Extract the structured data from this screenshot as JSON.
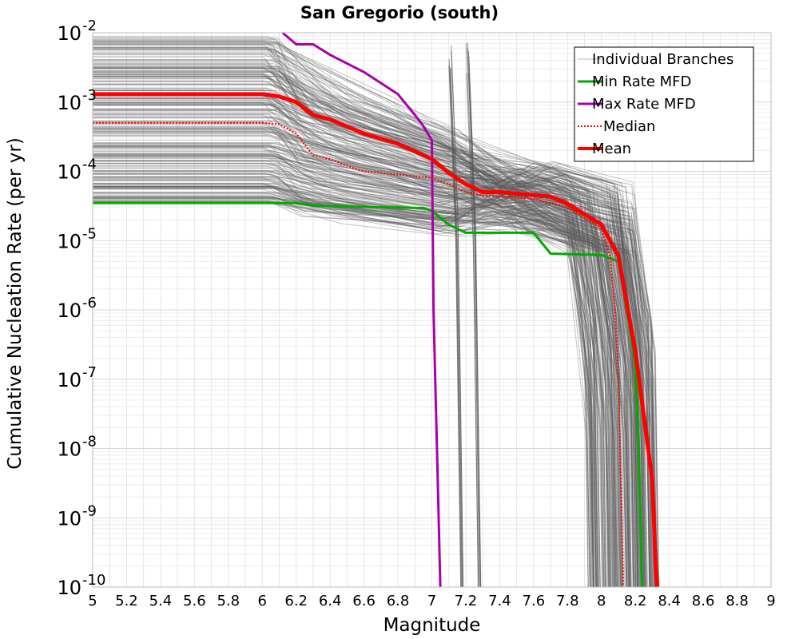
{
  "chart_data": {
    "type": "line",
    "title": "San Gregorio (south)",
    "xlabel": "Magnitude",
    "ylabel": "Cumulative Nucleation Rate (per yr)",
    "xlim": [
      5,
      9
    ],
    "ylim": [
      1e-10,
      0.01
    ],
    "y_scale": "log",
    "grid": true,
    "legend_position": "top-right",
    "x_ticks": [
      "5",
      "5.2",
      "5.4",
      "5.6",
      "5.8",
      "6",
      "6.2",
      "6.4",
      "6.6",
      "6.8",
      "7",
      "7.2",
      "7.4",
      "7.6",
      "7.8",
      "8",
      "8.2",
      "8.4",
      "8.6",
      "8.8",
      "9"
    ],
    "y_ticks": [
      {
        "base": "10",
        "exp": "-2",
        "value": 0.01
      },
      {
        "base": "10",
        "exp": "-3",
        "value": 0.001
      },
      {
        "base": "10",
        "exp": "-4",
        "value": 0.0001
      },
      {
        "base": "10",
        "exp": "-5",
        "value": 1e-05
      },
      {
        "base": "10",
        "exp": "-6",
        "value": 1e-06
      },
      {
        "base": "10",
        "exp": "-7",
        "value": 1e-07
      },
      {
        "base": "10",
        "exp": "-8",
        "value": 1e-08
      },
      {
        "base": "10",
        "exp": "-9",
        "value": 1e-09
      },
      {
        "base": "10",
        "exp": "-10",
        "value": 1e-10
      }
    ],
    "legend": [
      {
        "label": "Individual Branches",
        "color": "#bbbbbb",
        "style": "thin"
      },
      {
        "label": "Min Rate MFD",
        "color": "#00aa00",
        "style": "solid"
      },
      {
        "label": "Max Rate MFD",
        "color": "#aa00aa",
        "style": "solid"
      },
      {
        "label": "Median",
        "color": "#ff0000",
        "style": "dotted"
      },
      {
        "label": "Mean",
        "color": "#ff0000",
        "style": "thick"
      }
    ],
    "series": [
      {
        "name": "Min Rate MFD",
        "color": "#00aa00",
        "x": [
          5.0,
          6.0,
          6.1,
          6.2,
          6.3,
          6.5,
          6.8,
          6.95,
          7.0,
          7.1,
          7.2,
          7.6,
          7.7,
          8.0,
          8.1,
          8.15,
          8.2,
          8.22,
          8.23,
          8.24
        ],
        "y": [
          3.5e-05,
          3.5e-05,
          3.5e-05,
          3.5e-05,
          3.2e-05,
          3.1e-05,
          3e-05,
          2.95e-05,
          2.7e-05,
          1.7e-05,
          1.3e-05,
          1.3e-05,
          6.5e-06,
          6.2e-06,
          5e-06,
          1e-06,
          1.6e-07,
          1e-08,
          1e-09,
          1e-10
        ]
      },
      {
        "name": "Max Rate MFD",
        "color": "#aa00aa",
        "x": [
          6.12,
          6.2,
          6.3,
          6.4,
          6.6,
          6.8,
          6.9,
          6.95,
          7.0,
          7.01,
          7.02,
          7.03,
          7.05
        ],
        "y": [
          0.01,
          0.0068,
          0.0068,
          0.0048,
          0.0027,
          0.0013,
          0.00065,
          0.00045,
          0.00028,
          1e-06,
          1e-07,
          1e-08,
          1e-10
        ]
      },
      {
        "name": "Median",
        "color": "#ff0000",
        "x": [
          5.0,
          6.0,
          6.1,
          6.2,
          6.3,
          6.4,
          6.5,
          6.6,
          6.8,
          7.0,
          7.1,
          7.2,
          7.3,
          7.6,
          7.8,
          8.0,
          8.05,
          8.08,
          8.1,
          8.12,
          8.13
        ],
        "y": [
          0.0005,
          0.0005,
          0.00048,
          0.00035,
          0.00017,
          0.00015,
          0.00012,
          0.0001,
          9e-05,
          8e-05,
          6.5e-05,
          5e-05,
          4.5e-05,
          4e-05,
          3e-05,
          1.5e-05,
          6e-06,
          1e-06,
          1e-07,
          1e-09,
          1e-10
        ]
      },
      {
        "name": "Mean",
        "color": "#ff0000",
        "x": [
          5.0,
          6.0,
          6.1,
          6.2,
          6.3,
          6.4,
          6.6,
          6.8,
          7.0,
          7.1,
          7.2,
          7.3,
          7.4,
          7.7,
          7.8,
          8.0,
          8.1,
          8.2,
          8.3,
          8.32,
          8.33
        ],
        "y": [
          0.0013,
          0.0013,
          0.0012,
          0.001,
          0.00065,
          0.00056,
          0.00035,
          0.00025,
          0.00015,
          9.5e-05,
          6.5e-05,
          5e-05,
          5e-05,
          4.3e-05,
          3.4e-05,
          1.7e-05,
          6e-06,
          2.5e-07,
          3.5e-09,
          2e-10,
          1e-10
        ]
      }
    ]
  }
}
